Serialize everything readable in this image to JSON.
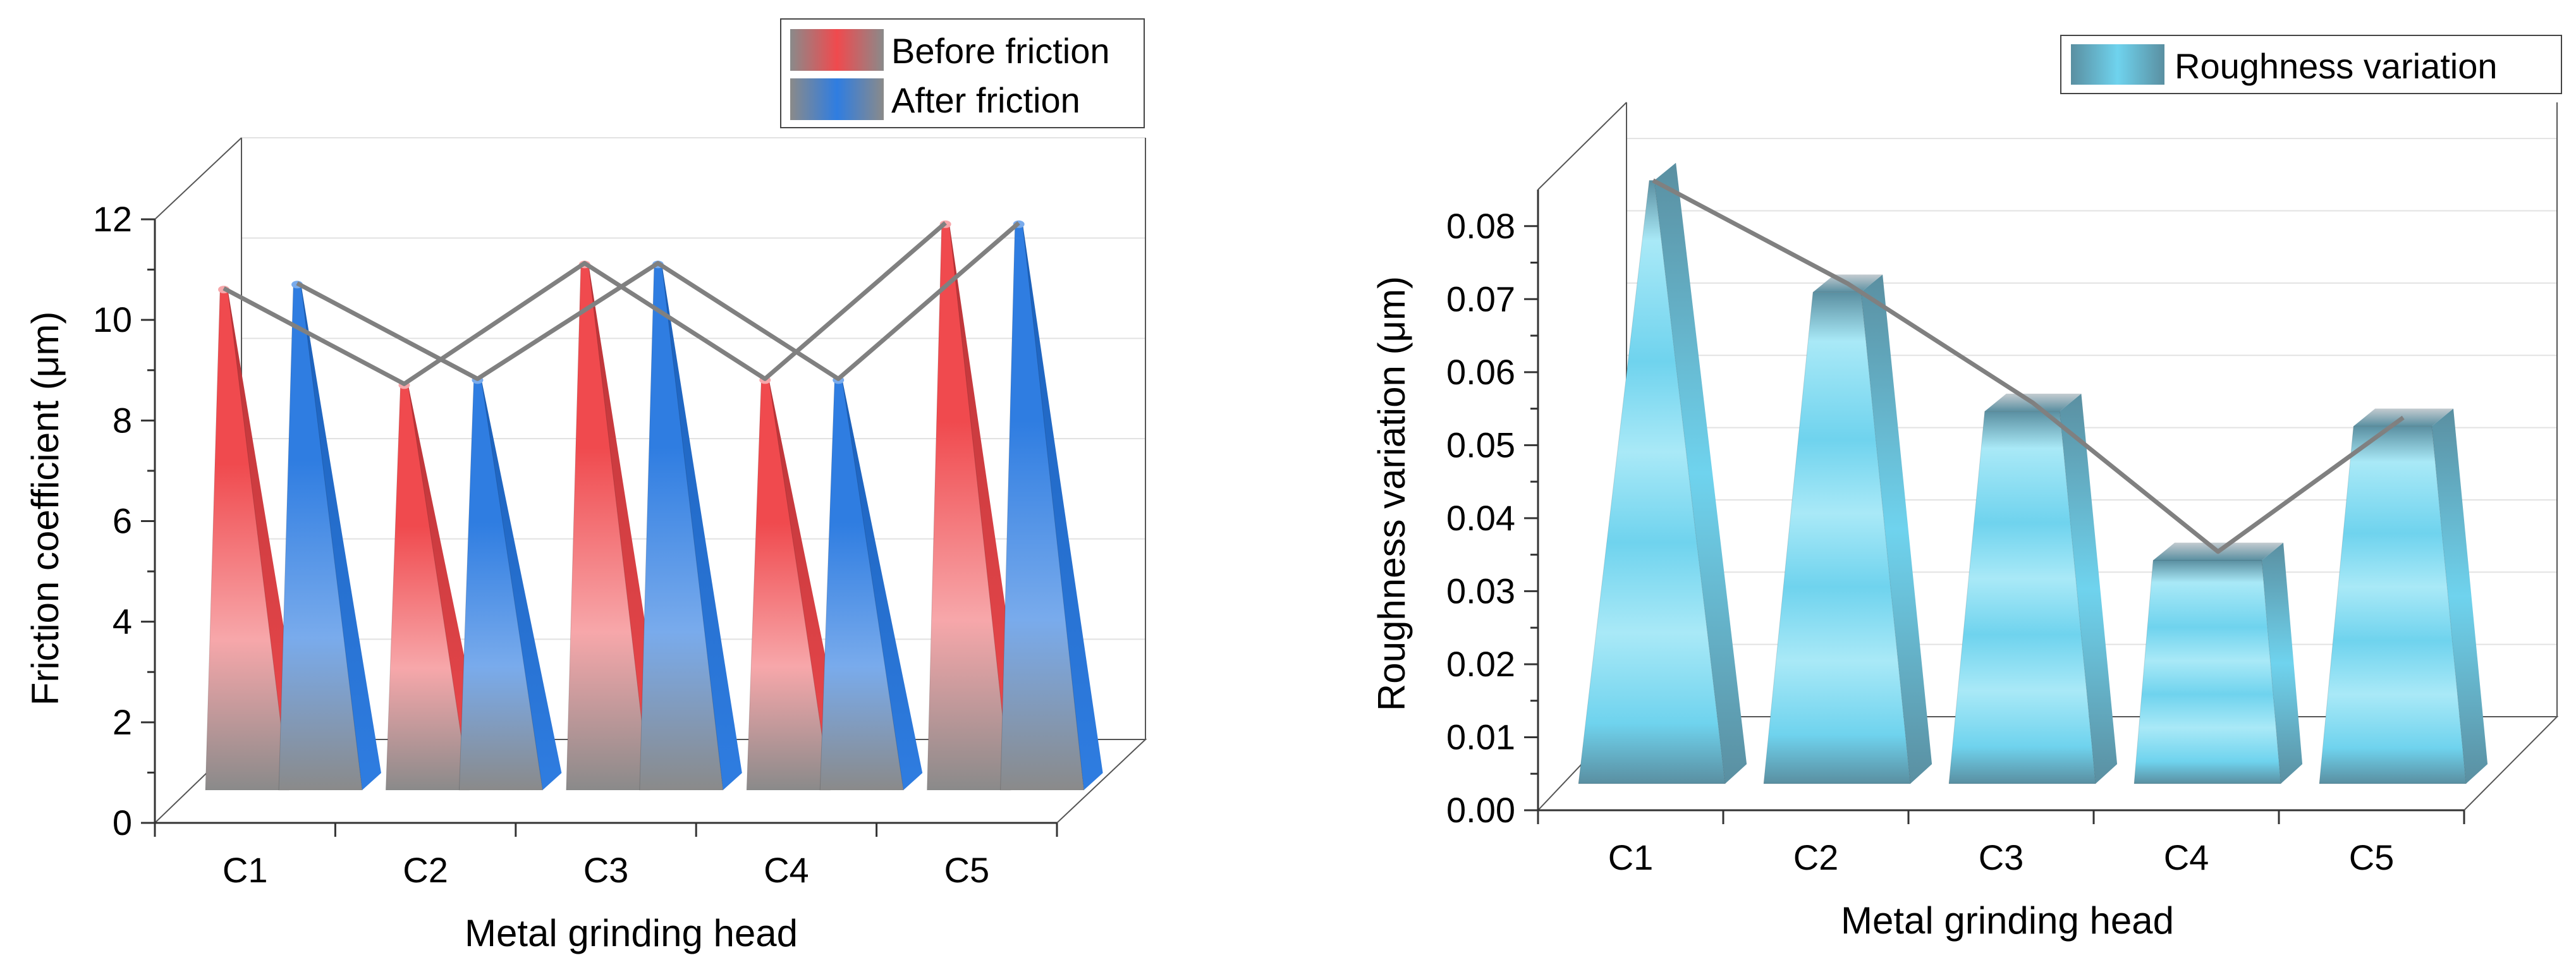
{
  "colors": {
    "before_main": "#f04a4e",
    "before_light": "#f7a7aa",
    "before_dark": "#b73337",
    "after_main": "#2f7de1",
    "after_light": "#79abec",
    "after_dark": "#1b5fb8",
    "rough_main": "#6fd3ee",
    "rough_light": "#a9e9f7",
    "rough_dark": "#5a8fa1",
    "base": "#8a8a8a",
    "trend_line": "#808080"
  },
  "chart_data": [
    {
      "type": "bar",
      "style": "3d-cone",
      "categories": [
        "C1",
        "C2",
        "C3",
        "C4",
        "C5"
      ],
      "series": [
        {
          "name": "Before friction",
          "values": [
            10.0,
            8.1,
            10.5,
            8.2,
            11.3
          ]
        },
        {
          "name": "After friction",
          "values": [
            10.1,
            8.2,
            10.5,
            8.2,
            11.3
          ]
        }
      ],
      "title": "",
      "xlabel": "Metal grinding head",
      "ylabel": "Friction coefficient (μm)",
      "ylim": [
        0,
        12
      ],
      "yticks": [
        0,
        2,
        4,
        6,
        8,
        10,
        12
      ],
      "ytick_labels": [
        "0",
        "2",
        "4",
        "6",
        "8",
        "10",
        "12"
      ],
      "legend": [
        "Before friction",
        "After friction"
      ],
      "legend_position": "top-right",
      "grid": true
    },
    {
      "type": "bar",
      "style": "3d-pyramid",
      "categories": [
        "C1",
        "C2",
        "C3",
        "C4",
        "C5"
      ],
      "series": [
        {
          "name": "Roughness variation",
          "values": [
            0.081,
            0.066,
            0.05,
            0.03,
            0.048
          ]
        }
      ],
      "title": "",
      "xlabel": "Metal grinding head",
      "ylabel": "Roughness variation (μm)",
      "ylim": [
        0,
        0.085
      ],
      "yticks": [
        0,
        0.01,
        0.02,
        0.03,
        0.04,
        0.05,
        0.06,
        0.07,
        0.08
      ],
      "ytick_labels": [
        "0.00",
        "0.01",
        "0.02",
        "0.03",
        "0.04",
        "0.05",
        "0.06",
        "0.07",
        "0.08"
      ],
      "legend": [
        "Roughness variation"
      ],
      "legend_position": "top-right",
      "grid": true
    }
  ]
}
